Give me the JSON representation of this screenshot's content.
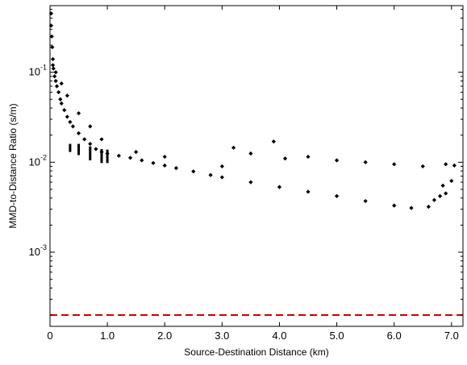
{
  "chart_data": {
    "type": "scatter",
    "title": "",
    "xlabel": "Source-Destination Distance (km)",
    "ylabel": "MMD-to-Distance Ratio (s/m)",
    "xlim": [
      0,
      7.2
    ],
    "ylim": [
      0.00015,
      0.55
    ],
    "y_scale": "log",
    "grid": false,
    "x_ticks": [
      {
        "value": 0,
        "label": "0"
      },
      {
        "value": 1,
        "label": "1.0"
      },
      {
        "value": 2,
        "label": "2.0"
      },
      {
        "value": 3,
        "label": "3.0"
      },
      {
        "value": 4,
        "label": "4.0"
      },
      {
        "value": 5,
        "label": "5.0"
      },
      {
        "value": 6,
        "label": "6.0"
      },
      {
        "value": 7,
        "label": "7.0"
      }
    ],
    "y_ticks": [
      {
        "value": 0.1,
        "base": "10",
        "exp": "-1"
      },
      {
        "value": 0.01,
        "base": "10",
        "exp": "-2"
      },
      {
        "value": 0.001,
        "base": "10",
        "exp": "-3"
      }
    ],
    "series": [
      {
        "marker": "diamond",
        "color": "#000000",
        "points": [
          [
            0.02,
            0.45
          ],
          [
            0.02,
            0.33
          ],
          [
            0.03,
            0.25
          ],
          [
            0.04,
            0.19
          ],
          [
            0.05,
            0.14
          ],
          [
            0.06,
            0.11
          ],
          [
            0.08,
            0.09
          ],
          [
            0.1,
            0.08
          ],
          [
            0.12,
            0.07
          ],
          [
            0.15,
            0.06
          ],
          [
            0.18,
            0.05
          ],
          [
            0.2,
            0.045
          ],
          [
            0.25,
            0.038
          ],
          [
            0.3,
            0.032
          ],
          [
            0.35,
            0.028
          ],
          [
            0.4,
            0.025
          ],
          [
            0.5,
            0.021
          ],
          [
            0.6,
            0.018
          ],
          [
            0.7,
            0.016
          ],
          [
            0.8,
            0.014
          ],
          [
            0.9,
            0.013
          ],
          [
            1.0,
            0.0125
          ],
          [
            1.2,
            0.0118
          ],
          [
            1.4,
            0.0112
          ],
          [
            1.6,
            0.0105
          ],
          [
            1.8,
            0.0098
          ],
          [
            2.0,
            0.0092
          ],
          [
            2.2,
            0.0086
          ],
          [
            2.5,
            0.0079
          ],
          [
            2.8,
            0.0072
          ],
          [
            3.0,
            0.0068
          ],
          [
            3.5,
            0.006
          ],
          [
            4.0,
            0.0053
          ],
          [
            4.5,
            0.0047
          ],
          [
            5.0,
            0.0042
          ],
          [
            5.5,
            0.0037
          ],
          [
            6.0,
            0.0033
          ],
          [
            6.3,
            0.0031
          ],
          [
            6.6,
            0.0032
          ],
          [
            6.9,
            0.0045
          ],
          [
            0.05,
            0.12
          ],
          [
            0.1,
            0.1
          ],
          [
            0.2,
            0.075
          ],
          [
            0.3,
            0.055
          ],
          [
            0.5,
            0.035
          ],
          [
            0.7,
            0.025
          ],
          [
            0.9,
            0.018
          ],
          [
            1.5,
            0.013
          ],
          [
            2.0,
            0.0115
          ],
          [
            3.0,
            0.009
          ],
          [
            3.2,
            0.0145
          ],
          [
            3.5,
            0.0125
          ],
          [
            3.9,
            0.017
          ],
          [
            4.1,
            0.011
          ],
          [
            4.5,
            0.0115
          ],
          [
            5.0,
            0.0105
          ],
          [
            5.5,
            0.01
          ],
          [
            6.0,
            0.0095
          ],
          [
            6.5,
            0.009
          ],
          [
            6.9,
            0.0095
          ],
          [
            7.05,
            0.0092
          ],
          [
            6.8,
            0.0042
          ],
          [
            6.7,
            0.0038
          ],
          [
            6.85,
            0.0055
          ],
          [
            7.0,
            0.0062
          ]
        ],
        "bands": [
          [
            0.35,
            0.013,
            0.016
          ],
          [
            0.5,
            0.012,
            0.016
          ],
          [
            0.7,
            0.0105,
            0.015
          ],
          [
            0.9,
            0.0098,
            0.014
          ],
          [
            1.0,
            0.0098,
            0.0138
          ]
        ]
      }
    ],
    "reference_line": {
      "y": 0.0002,
      "style": "dashed",
      "color": "#cc0000"
    }
  }
}
